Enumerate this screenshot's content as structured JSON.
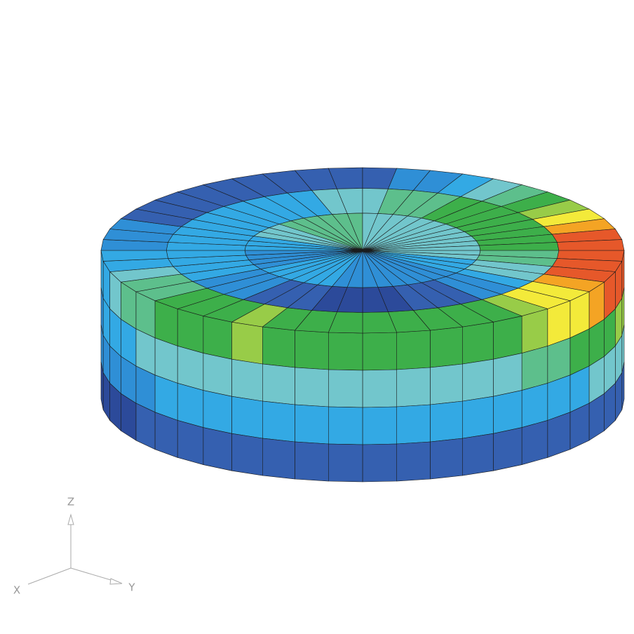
{
  "axes": {
    "z": "Z",
    "x": "X",
    "y": "Y"
  }
}
